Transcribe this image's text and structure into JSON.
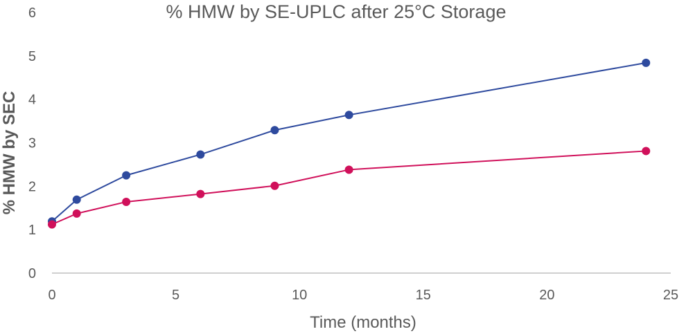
{
  "chart_data": {
    "type": "line",
    "title": "% HMW by SE-UPLC after 25°C Storage",
    "xlabel": "Time (months)",
    "ylabel": "% HMW by SEC",
    "xlim": [
      0,
      25
    ],
    "ylim": [
      0,
      6
    ],
    "xticks": [
      0,
      5,
      10,
      15,
      20,
      25
    ],
    "yticks": [
      0,
      1,
      2,
      3,
      4,
      5,
      6
    ],
    "grid": false,
    "legend": "none",
    "x": [
      0,
      1,
      3,
      6,
      9,
      12,
      24
    ],
    "series": [
      {
        "values": [
          1.19,
          1.69,
          2.25,
          2.73,
          3.29,
          3.64,
          4.84
        ],
        "color": "#2E4A9E"
      },
      {
        "values": [
          1.12,
          1.37,
          1.64,
          1.82,
          2.01,
          2.38,
          2.81
        ],
        "color": "#D0105A"
      }
    ]
  }
}
